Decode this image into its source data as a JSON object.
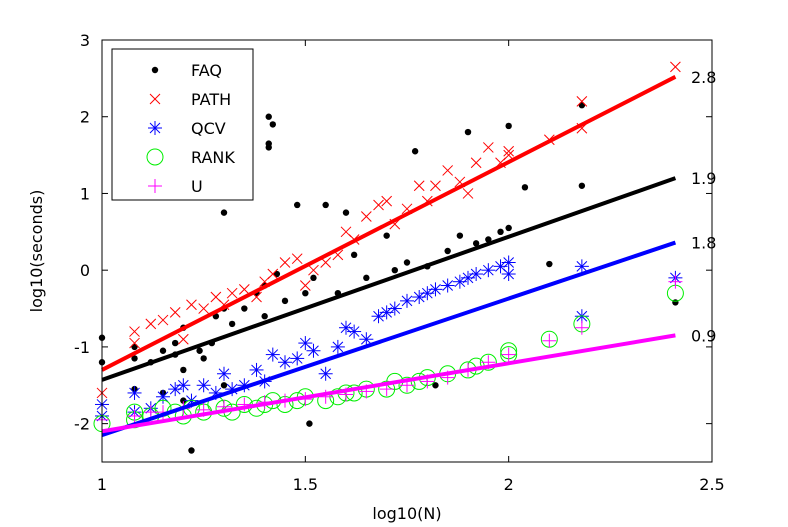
{
  "chart_data": {
    "type": "scatter",
    "xlabel": "log10(N)",
    "ylabel": "log10(seconds)",
    "xlim": [
      1,
      2.5
    ],
    "ylim": [
      -2.5,
      3
    ],
    "xticks": [
      1,
      1.5,
      2,
      2.5
    ],
    "xtick_labels": [
      "1",
      "1.5",
      "2",
      "2.5"
    ],
    "yticks": [
      -2,
      -1,
      0,
      1,
      2,
      3
    ],
    "ytick_labels": [
      "-2",
      "-1",
      "0",
      "1",
      "2",
      "3"
    ],
    "grid": false,
    "legend_position": "top-left",
    "series": [
      {
        "name": "FAQ",
        "marker": "dot",
        "color": "#000000",
        "points": [
          [
            1,
            -0.88
          ],
          [
            1,
            -1.2
          ],
          [
            1.08,
            -1.15
          ],
          [
            1.08,
            -1.55
          ],
          [
            1.08,
            -1.0
          ],
          [
            1.12,
            -1.2
          ],
          [
            1.15,
            -1.05
          ],
          [
            1.15,
            -1.6
          ],
          [
            1.18,
            -0.95
          ],
          [
            1.18,
            -1.1
          ],
          [
            1.2,
            -1.3
          ],
          [
            1.2,
            -0.75
          ],
          [
            1.2,
            -1.7
          ],
          [
            1.22,
            -2.35
          ],
          [
            1.24,
            -1.05
          ],
          [
            1.25,
            -1.15
          ],
          [
            1.27,
            -0.95
          ],
          [
            1.28,
            -0.6
          ],
          [
            1.3,
            0.75
          ],
          [
            1.3,
            -0.5
          ],
          [
            1.3,
            -1.5
          ],
          [
            1.32,
            -0.7
          ],
          [
            1.35,
            -0.5
          ],
          [
            1.38,
            -0.3
          ],
          [
            1.4,
            -0.6
          ],
          [
            1.4,
            -0.2
          ],
          [
            1.41,
            2.0
          ],
          [
            1.41,
            1.6
          ],
          [
            1.41,
            1.65
          ],
          [
            1.42,
            1.9
          ],
          [
            1.43,
            -0.05
          ],
          [
            1.45,
            -0.4
          ],
          [
            1.48,
            0.85
          ],
          [
            1.5,
            -0.3
          ],
          [
            1.51,
            -2.0
          ],
          [
            1.52,
            -0.1
          ],
          [
            1.55,
            0.85
          ],
          [
            1.58,
            -0.3
          ],
          [
            1.6,
            0.75
          ],
          [
            1.62,
            0.2
          ],
          [
            1.65,
            -0.1
          ],
          [
            1.7,
            0.45
          ],
          [
            1.72,
            0.0
          ],
          [
            1.75,
            0.1
          ],
          [
            1.77,
            1.55
          ],
          [
            1.8,
            0.05
          ],
          [
            1.82,
            -1.5
          ],
          [
            1.85,
            0.25
          ],
          [
            1.88,
            0.45
          ],
          [
            1.9,
            1.8
          ],
          [
            1.92,
            0.35
          ],
          [
            1.95,
            0.4
          ],
          [
            1.98,
            0.5
          ],
          [
            2.0,
            1.88
          ],
          [
            2.0,
            0.55
          ],
          [
            2.04,
            1.08
          ],
          [
            2.1,
            0.08
          ],
          [
            2.18,
            1.1
          ],
          [
            2.18,
            2.15
          ],
          [
            2.41,
            -0.42
          ]
        ]
      },
      {
        "name": "PATH",
        "marker": "x",
        "color": "#ff0000",
        "points": [
          [
            1,
            -1.6
          ],
          [
            1.08,
            -0.8
          ],
          [
            1.08,
            -0.95
          ],
          [
            1.12,
            -0.7
          ],
          [
            1.15,
            -0.65
          ],
          [
            1.18,
            -0.55
          ],
          [
            1.2,
            -0.9
          ],
          [
            1.22,
            -0.45
          ],
          [
            1.25,
            -0.5
          ],
          [
            1.28,
            -0.35
          ],
          [
            1.3,
            -0.45
          ],
          [
            1.32,
            -0.3
          ],
          [
            1.35,
            -0.25
          ],
          [
            1.38,
            -0.35
          ],
          [
            1.4,
            -0.15
          ],
          [
            1.42,
            -0.05
          ],
          [
            1.45,
            0.1
          ],
          [
            1.48,
            0.15
          ],
          [
            1.5,
            -0.2
          ],
          [
            1.52,
            0.0
          ],
          [
            1.55,
            0.1
          ],
          [
            1.58,
            0.2
          ],
          [
            1.6,
            0.5
          ],
          [
            1.62,
            0.4
          ],
          [
            1.65,
            0.7
          ],
          [
            1.68,
            0.85
          ],
          [
            1.7,
            0.9
          ],
          [
            1.72,
            0.6
          ],
          [
            1.75,
            0.8
          ],
          [
            1.78,
            1.1
          ],
          [
            1.8,
            0.9
          ],
          [
            1.82,
            1.1
          ],
          [
            1.85,
            1.3
          ],
          [
            1.88,
            1.15
          ],
          [
            1.9,
            1.0
          ],
          [
            1.92,
            1.4
          ],
          [
            1.95,
            1.6
          ],
          [
            1.98,
            1.4
          ],
          [
            2.0,
            1.5
          ],
          [
            2.0,
            1.55
          ],
          [
            2.1,
            1.7
          ],
          [
            2.18,
            1.85
          ],
          [
            2.18,
            2.2
          ],
          [
            2.41,
            2.65
          ]
        ]
      },
      {
        "name": "QCV",
        "marker": "asterisk",
        "color": "#0000ff",
        "points": [
          [
            1,
            -1.75
          ],
          [
            1,
            -1.9
          ],
          [
            1.08,
            -1.6
          ],
          [
            1.08,
            -1.85
          ],
          [
            1.12,
            -1.8
          ],
          [
            1.15,
            -1.65
          ],
          [
            1.18,
            -1.55
          ],
          [
            1.2,
            -1.5
          ],
          [
            1.22,
            -1.7
          ],
          [
            1.25,
            -1.5
          ],
          [
            1.28,
            -1.6
          ],
          [
            1.3,
            -1.35
          ],
          [
            1.32,
            -1.55
          ],
          [
            1.35,
            -1.5
          ],
          [
            1.38,
            -1.3
          ],
          [
            1.4,
            -1.45
          ],
          [
            1.42,
            -1.1
          ],
          [
            1.45,
            -1.2
          ],
          [
            1.48,
            -1.15
          ],
          [
            1.5,
            -0.95
          ],
          [
            1.52,
            -1.05
          ],
          [
            1.55,
            -1.35
          ],
          [
            1.58,
            -1.0
          ],
          [
            1.6,
            -0.75
          ],
          [
            1.62,
            -0.8
          ],
          [
            1.65,
            -0.9
          ],
          [
            1.68,
            -0.6
          ],
          [
            1.7,
            -0.55
          ],
          [
            1.72,
            -0.5
          ],
          [
            1.75,
            -0.4
          ],
          [
            1.78,
            -0.35
          ],
          [
            1.8,
            -0.3
          ],
          [
            1.82,
            -0.25
          ],
          [
            1.85,
            -0.2
          ],
          [
            1.88,
            -0.15
          ],
          [
            1.9,
            -0.1
          ],
          [
            1.92,
            -0.05
          ],
          [
            1.95,
            0.0
          ],
          [
            1.98,
            0.05
          ],
          [
            2.0,
            0.1
          ],
          [
            2.0,
            -0.05
          ],
          [
            2.18,
            0.05
          ],
          [
            2.18,
            -0.6
          ],
          [
            2.41,
            -0.1
          ]
        ]
      },
      {
        "name": "RANK",
        "marker": "circle",
        "color": "#00ee00",
        "points": [
          [
            1,
            -2.0
          ],
          [
            1.08,
            -1.95
          ],
          [
            1.08,
            -1.85
          ],
          [
            1.12,
            -1.9
          ],
          [
            1.15,
            -1.8
          ],
          [
            1.18,
            -1.85
          ],
          [
            1.2,
            -1.9
          ],
          [
            1.22,
            -1.8
          ],
          [
            1.25,
            -1.85
          ],
          [
            1.28,
            -1.75
          ],
          [
            1.3,
            -1.8
          ],
          [
            1.32,
            -1.85
          ],
          [
            1.35,
            -1.75
          ],
          [
            1.38,
            -1.8
          ],
          [
            1.4,
            -1.75
          ],
          [
            1.42,
            -1.7
          ],
          [
            1.45,
            -1.75
          ],
          [
            1.48,
            -1.7
          ],
          [
            1.5,
            -1.65
          ],
          [
            1.55,
            -1.7
          ],
          [
            1.58,
            -1.65
          ],
          [
            1.6,
            -1.6
          ],
          [
            1.62,
            -1.6
          ],
          [
            1.65,
            -1.55
          ],
          [
            1.7,
            -1.55
          ],
          [
            1.72,
            -1.45
          ],
          [
            1.75,
            -1.5
          ],
          [
            1.78,
            -1.45
          ],
          [
            1.8,
            -1.4
          ],
          [
            1.85,
            -1.35
          ],
          [
            1.9,
            -1.3
          ],
          [
            1.92,
            -1.25
          ],
          [
            1.95,
            -1.2
          ],
          [
            2.0,
            -1.1
          ],
          [
            2.0,
            -1.05
          ],
          [
            2.1,
            -0.9
          ],
          [
            2.18,
            -0.7
          ],
          [
            2.41,
            -0.3
          ]
        ]
      },
      {
        "name": "U",
        "marker": "plus",
        "color": "#ff00ff",
        "points": [
          [
            1,
            -1.95
          ],
          [
            1.08,
            -1.9
          ],
          [
            1.12,
            -1.85
          ],
          [
            1.15,
            -1.85
          ],
          [
            1.2,
            -1.8
          ],
          [
            1.25,
            -1.82
          ],
          [
            1.3,
            -1.78
          ],
          [
            1.35,
            -1.75
          ],
          [
            1.4,
            -1.72
          ],
          [
            1.45,
            -1.7
          ],
          [
            1.5,
            -1.68
          ],
          [
            1.55,
            -1.65
          ],
          [
            1.6,
            -1.62
          ],
          [
            1.65,
            -1.58
          ],
          [
            1.7,
            -1.55
          ],
          [
            1.75,
            -1.5
          ],
          [
            1.8,
            -1.45
          ],
          [
            1.85,
            -1.4
          ],
          [
            1.9,
            -1.3
          ],
          [
            1.95,
            -1.2
          ],
          [
            2.0,
            -1.1
          ],
          [
            2.1,
            -0.92
          ],
          [
            2.18,
            -0.75
          ],
          [
            2.41,
            -0.15
          ]
        ]
      }
    ],
    "fit_lines": [
      {
        "series": "PATH",
        "color": "#ff0000",
        "x": [
          1,
          2.41
        ],
        "y": [
          -1.3,
          2.52
        ],
        "label": "2.8"
      },
      {
        "series": "FAQ",
        "color": "#000000",
        "x": [
          1,
          2.41
        ],
        "y": [
          -1.43,
          1.2
        ],
        "label": "1.9"
      },
      {
        "series": "QCV",
        "color": "#0000ff",
        "x": [
          1,
          2.41
        ],
        "y": [
          -2.15,
          0.36
        ],
        "label": "1.8"
      },
      {
        "series": "U",
        "color": "#ff00ff",
        "x": [
          1,
          2.41
        ],
        "y": [
          -2.1,
          -0.85
        ],
        "label": "0.9"
      }
    ]
  }
}
